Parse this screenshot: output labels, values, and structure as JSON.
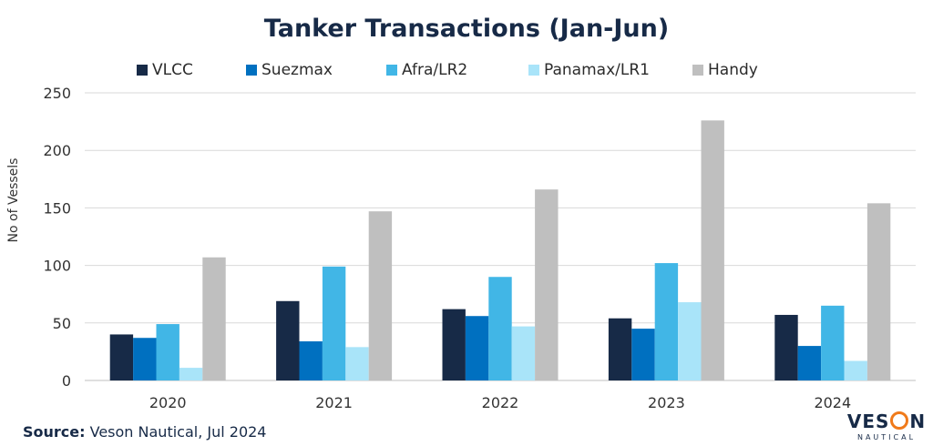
{
  "chart_data": {
    "type": "bar",
    "title": "Tanker Transactions (Jan-Jun)",
    "xlabel": "",
    "ylabel": "No of Vessels",
    "ylim": [
      0,
      250
    ],
    "yticks": [
      0,
      50,
      100,
      150,
      200,
      250
    ],
    "grid": true,
    "legend_position": "top",
    "categories": [
      "2020",
      "2021",
      "2022",
      "2023",
      "2024"
    ],
    "series": [
      {
        "name": "VLCC",
        "color": "#172a47",
        "values": [
          40,
          69,
          62,
          54,
          57
        ]
      },
      {
        "name": "Suezmax",
        "color": "#0070c0",
        "values": [
          37,
          34,
          56,
          45,
          30
        ]
      },
      {
        "name": "Afra/LR2",
        "color": "#41b6e6",
        "values": [
          49,
          99,
          90,
          102,
          65
        ]
      },
      {
        "name": "Panamax/LR1",
        "color": "#a9e4f9",
        "values": [
          11,
          29,
          47,
          68,
          17
        ]
      },
      {
        "name": "Handy",
        "color": "#bfbfbf",
        "values": [
          107,
          147,
          166,
          226,
          154
        ]
      }
    ]
  },
  "source": {
    "label": "Source:",
    "text": "Veson Nautical, Jul 2024"
  },
  "logo": {
    "part1": "VES",
    "part2": "N",
    "sub": "NAUTICAL"
  }
}
